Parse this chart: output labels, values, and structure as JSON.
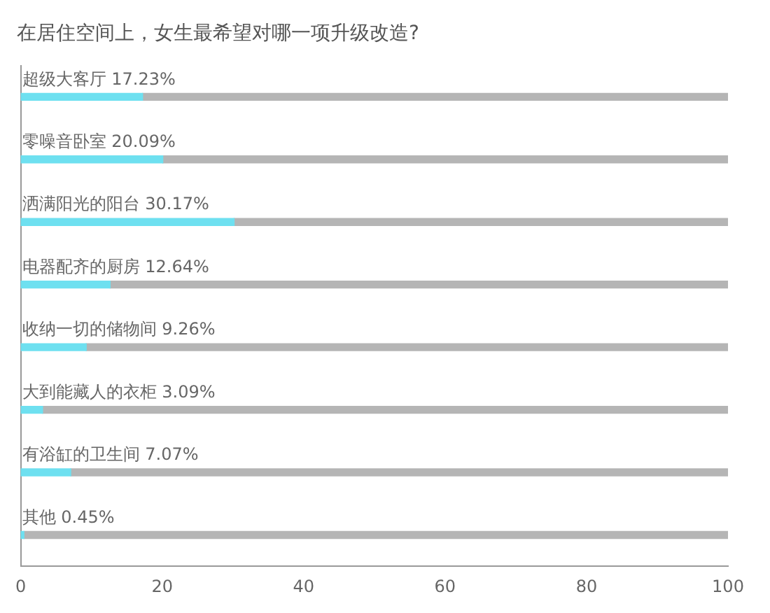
{
  "chart_data": {
    "type": "bar",
    "orientation": "horizontal",
    "stacked": true,
    "title": "在居住空间上，女生最希望对哪一项升级改造?",
    "categories": [
      "超级大客厅",
      "零噪音卧室",
      "洒满阳光的阳台",
      "电器配齐的厨房",
      "收纳一切的储物间",
      "大到能藏人的衣柜",
      "有浴缸的卫生间",
      "其他"
    ],
    "series": [
      {
        "color": "#6ee0f0",
        "values": [
          17.23,
          20.09,
          30.17,
          12.64,
          9.26,
          3.09,
          7.07,
          0.45
        ],
        "value_labels": [
          "17.23%",
          "20.09%",
          "30.17%",
          "12.64%",
          "9.26%",
          "3.09%",
          "7.07%",
          "0.45%"
        ]
      },
      {
        "color": "#b5b5b5",
        "values": [
          82.77,
          79.91,
          69.83,
          87.36,
          90.74,
          96.91,
          92.93,
          99.55
        ]
      }
    ],
    "xlim": [
      0,
      100
    ],
    "xticks": [
      0,
      20,
      40,
      60,
      80,
      100
    ],
    "grid": false,
    "legend": false
  }
}
